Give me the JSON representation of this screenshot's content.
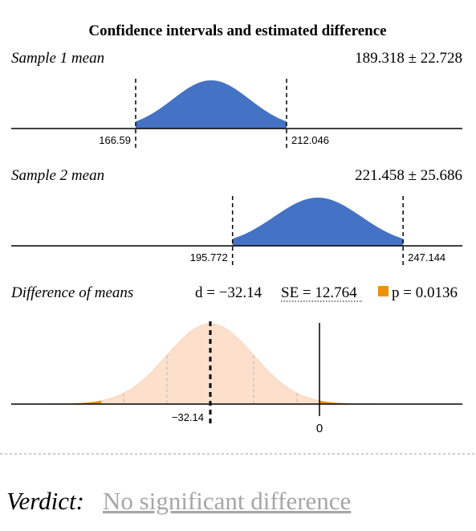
{
  "title": "Confidence intervals and estimated difference",
  "colors": {
    "ci_fill": "#4472c4",
    "diff_fill": "#fde0cc",
    "tail_fill": "#f0900a",
    "axis": "#000000",
    "guide": "#bfbfbf",
    "verdict": "#a6a6a6"
  },
  "sample1": {
    "label": "Sample 1 mean",
    "estimate": "189.318 ± 22.728",
    "mean": 189.318,
    "lower": 166.59,
    "upper": 212.046,
    "lower_label": "166.59",
    "upper_label": "212.046"
  },
  "sample2": {
    "label": "Sample 2 mean",
    "estimate": "221.458 ± 25.686",
    "mean": 221.458,
    "lower": 195.772,
    "upper": 247.144,
    "lower_label": "195.772",
    "upper_label": "247.144"
  },
  "difference": {
    "label": "Difference of means",
    "d_text": "d = −32.14",
    "se_text": "SE = 12.764",
    "p_text": "p = 0.0136",
    "d": -32.14,
    "se": 12.764,
    "p": 0.0136,
    "d_label": "−32.14",
    "zero_label": "0"
  },
  "verdict": {
    "label": "Verdict:",
    "value": "No significant difference"
  }
}
